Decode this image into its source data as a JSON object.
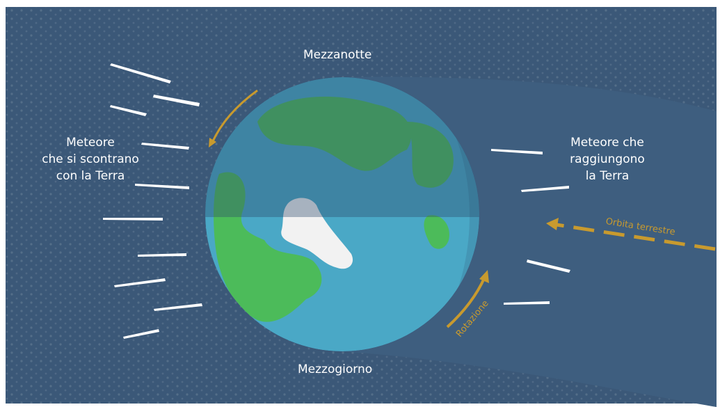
{
  "labels": {
    "top": "Mezzanotte",
    "bottom": "Mezzogiorno",
    "left": [
      "Meteore",
      "che si scontrano",
      "con la Terra"
    ],
    "right": [
      "Meteore che",
      "raggiungono",
      "la Terra"
    ],
    "orbit": "Orbita terrestre",
    "rotation": "Rotazione"
  },
  "colors": {
    "space": "#3b5878",
    "shadow": "#3e5e7f",
    "ocean": "#4aa8c6",
    "ocean_dark": "#3e7e99",
    "land": "#4cbb5a",
    "land_dark": "#3f8f47",
    "ice": "#f2f2f2",
    "arrow": "#c89a2e",
    "meteor": "#ffffff"
  },
  "icons": {
    "meteor": "meteor-streak-icon",
    "orbit_arrow": "dashed-arrow-icon",
    "rotation_arrow": "curved-arrow-icon"
  }
}
